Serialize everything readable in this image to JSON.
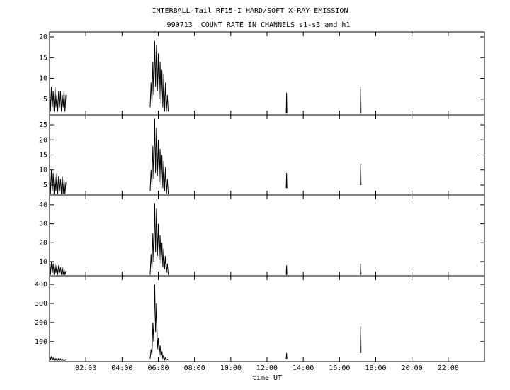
{
  "chart_data": [
    {
      "type": "line",
      "title": "INTERBALL-Tail RF15-I HARD/SOFT X-RAY EMISSION",
      "subtitle": "990713  COUNT RATE IN CHANNELS s1-s3 and h1",
      "color": "#000000",
      "xlim": [
        0,
        24
      ],
      "ylim": [
        1.2,
        21.2
      ],
      "yticks": [
        5,
        10,
        15,
        20
      ],
      "x": [
        0,
        0.05,
        0.1,
        0.15,
        0.2,
        0.25,
        0.3,
        0.35,
        0.4,
        0.45,
        0.5,
        0.55,
        0.6,
        0.65,
        0.7,
        0.75,
        0.8,
        0.85,
        0.9,
        1.0,
        5.55,
        5.6,
        5.65,
        5.7,
        5.75,
        5.8,
        5.85,
        5.9,
        5.95,
        6.0,
        6.05,
        6.1,
        6.15,
        6.2,
        6.25,
        6.3,
        6.35,
        6.4,
        6.45,
        6.5,
        6.55,
        6.6,
        13.06,
        13.08,
        13.1,
        13.2,
        17.15,
        17.17,
        17.19
      ],
      "values": [
        9,
        2,
        8,
        3,
        7,
        2,
        8,
        3,
        6,
        2,
        7,
        3,
        7,
        2,
        6,
        3,
        7,
        2,
        6,
        null,
        3,
        9,
        4,
        14,
        6,
        19,
        8,
        18,
        7,
        16,
        5,
        14,
        4,
        12,
        3,
        11,
        2,
        9,
        2,
        6,
        2,
        null,
        1.5,
        6.5,
        1.5,
        null,
        1.5,
        8,
        1.5
      ]
    },
    {
      "type": "line",
      "color": "#000000",
      "xlim": [
        0,
        24
      ],
      "ylim": [
        1.7,
        28.3
      ],
      "yticks": [
        5,
        10,
        15,
        20,
        25
      ],
      "x": [
        0,
        0.05,
        0.1,
        0.15,
        0.2,
        0.25,
        0.3,
        0.35,
        0.4,
        0.45,
        0.5,
        0.55,
        0.6,
        0.65,
        0.7,
        0.75,
        0.8,
        0.85,
        0.9,
        1.0,
        5.55,
        5.6,
        5.65,
        5.7,
        5.75,
        5.8,
        5.85,
        5.9,
        5.95,
        6.0,
        6.05,
        6.1,
        6.15,
        6.2,
        6.25,
        6.3,
        6.35,
        6.4,
        6.45,
        6.5,
        6.55,
        6.6,
        13.06,
        13.08,
        13.1,
        13.2,
        17.15,
        17.17,
        17.19
      ],
      "values": [
        11,
        2,
        10,
        3,
        9,
        2,
        8,
        3,
        9,
        2,
        8,
        3,
        7,
        2,
        8,
        2,
        7,
        2,
        6,
        null,
        3,
        10,
        5,
        18,
        7,
        27,
        9,
        24,
        8,
        20,
        6,
        17,
        5,
        15,
        4,
        13,
        3,
        11,
        2,
        7,
        2,
        null,
        4,
        9,
        4,
        null,
        5,
        12,
        5
      ]
    },
    {
      "type": "line",
      "color": "#000000",
      "xlim": [
        0,
        24
      ],
      "ylim": [
        2.5,
        45.2
      ],
      "yticks": [
        10,
        20,
        30,
        40
      ],
      "x": [
        0,
        0.05,
        0.1,
        0.15,
        0.2,
        0.25,
        0.3,
        0.35,
        0.4,
        0.45,
        0.5,
        0.55,
        0.6,
        0.65,
        0.7,
        0.75,
        0.8,
        0.85,
        0.9,
        1.0,
        5.55,
        5.6,
        5.65,
        5.7,
        5.75,
        5.8,
        5.85,
        5.9,
        5.95,
        6.0,
        6.05,
        6.1,
        6.15,
        6.2,
        6.25,
        6.3,
        6.35,
        6.4,
        6.45,
        6.5,
        6.55,
        6.6,
        13.06,
        13.08,
        13.1,
        13.2,
        17.15,
        17.17,
        17.19
      ],
      "values": [
        12,
        3,
        10,
        4,
        9,
        3,
        9,
        4,
        8,
        3,
        8,
        4,
        7,
        3,
        7,
        3,
        6,
        3,
        5,
        null,
        3,
        14,
        6,
        25,
        10,
        41,
        15,
        38,
        13,
        30,
        11,
        24,
        9,
        20,
        7,
        17,
        6,
        13,
        4,
        9,
        3,
        null,
        3,
        8,
        3,
        null,
        3,
        9,
        3
      ]
    },
    {
      "type": "line",
      "color": "#000000",
      "xlim": [
        0,
        24
      ],
      "ylim": [
        -5,
        445
      ],
      "yticks": [
        100,
        200,
        300,
        400
      ],
      "xlabel": "time UT",
      "xticks": [
        {
          "value": 2,
          "label": "02:00"
        },
        {
          "value": 4,
          "label": "04:00"
        },
        {
          "value": 6,
          "label": "06:00"
        },
        {
          "value": 8,
          "label": "08:00"
        },
        {
          "value": 10,
          "label": "10:00"
        },
        {
          "value": 12,
          "label": "12:00"
        },
        {
          "value": 14,
          "label": "14:00"
        },
        {
          "value": 16,
          "label": "16:00"
        },
        {
          "value": 18,
          "label": "18:00"
        },
        {
          "value": 20,
          "label": "20:00"
        },
        {
          "value": 22,
          "label": "22:00"
        }
      ],
      "x": [
        0,
        0.05,
        0.1,
        0.15,
        0.2,
        0.25,
        0.3,
        0.35,
        0.4,
        0.45,
        0.5,
        0.55,
        0.6,
        0.65,
        0.7,
        0.75,
        0.8,
        0.85,
        0.9,
        1.0,
        5.55,
        5.6,
        5.65,
        5.7,
        5.75,
        5.8,
        5.85,
        5.9,
        5.95,
        6.0,
        6.05,
        6.1,
        6.15,
        6.2,
        6.25,
        6.3,
        6.35,
        6.4,
        6.45,
        6.5,
        6.55,
        6.6,
        13.06,
        13.08,
        13.1,
        13.2,
        17.15,
        17.17,
        17.19
      ],
      "values": [
        30,
        5,
        20,
        4,
        15,
        3,
        14,
        3,
        12,
        2,
        11,
        2,
        10,
        2,
        9,
        2,
        8,
        2,
        6,
        null,
        10,
        60,
        30,
        200,
        100,
        400,
        150,
        300,
        60,
        120,
        30,
        80,
        20,
        50,
        10,
        30,
        5,
        15,
        3,
        8,
        2,
        null,
        10,
        40,
        10,
        null,
        40,
        180,
        40
      ]
    }
  ]
}
